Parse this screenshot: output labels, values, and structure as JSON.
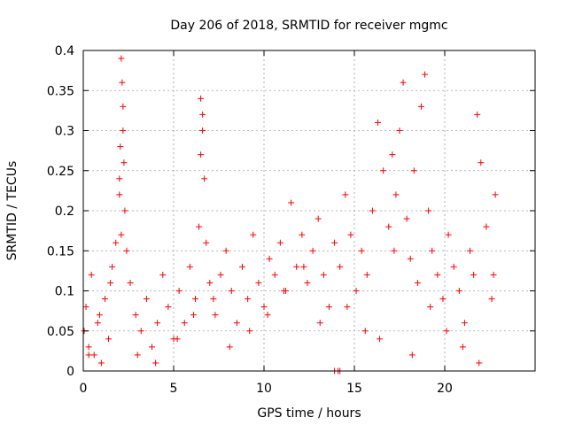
{
  "chart_data": {
    "type": "scatter",
    "title": "Day 206 of 2018, SRMTID for receiver mgmc",
    "xlabel": "GPS time / hours",
    "ylabel": "SRMTID / TECUs",
    "xlim": [
      0,
      25
    ],
    "ylim": [
      0,
      0.4
    ],
    "xticks": [
      "0",
      "5",
      "10",
      "15",
      "20"
    ],
    "yticks": [
      "0",
      "0.05",
      "0.1",
      "0.15",
      "0.2",
      "0.25",
      "0.3",
      "0.35",
      "0.4"
    ],
    "grid": true,
    "marker_color": "#ff0000",
    "series": [
      {
        "marker": "plus",
        "x": [
          0.05,
          0.15,
          0.3,
          0.45,
          0.6,
          0.8,
          1.0,
          1.2,
          1.4,
          1.6,
          1.8,
          2.0,
          2.05,
          2.1,
          2.15,
          2.2,
          2.25,
          2.3,
          2.4,
          2.6,
          2.9,
          3.2,
          3.5,
          3.8,
          4.1,
          4.4,
          4.7,
          5.0,
          5.3,
          5.6,
          5.9,
          6.2,
          6.4,
          6.5,
          6.6,
          6.7,
          6.8,
          7.0,
          7.3,
          7.6,
          7.9,
          8.2,
          8.5,
          8.8,
          9.1,
          9.4,
          9.7,
          10.0,
          10.3,
          10.6,
          10.9,
          11.2,
          11.5,
          11.8,
          12.1,
          12.4,
          12.7,
          13.0,
          13.3,
          13.6,
          13.9,
          14.2,
          14.5,
          14.8,
          15.1,
          15.4,
          15.7,
          16.0,
          16.3,
          16.6,
          16.9,
          17.1,
          17.3,
          17.5,
          17.7,
          17.9,
          18.1,
          18.3,
          18.5,
          18.7,
          18.9,
          19.1,
          19.3,
          19.6,
          19.9,
          20.2,
          20.5,
          20.8,
          21.1,
          21.4,
          21.6,
          21.8,
          22.0,
          22.3,
          22.6,
          22.8,
          0.3,
          0.9,
          1.5,
          2.1,
          3.0,
          4.0,
          5.2,
          6.1,
          7.2,
          8.1,
          9.2,
          10.2,
          11.1,
          12.2,
          13.1,
          14.6,
          15.6,
          16.4,
          17.2,
          18.2,
          19.2,
          20.1,
          21.0,
          21.9,
          22.7,
          2.0,
          2.2,
          6.5,
          6.6,
          13.9,
          14.1,
          14.2
        ],
        "y": [
          0.05,
          0.08,
          0.03,
          0.12,
          0.02,
          0.06,
          0.01,
          0.09,
          0.04,
          0.13,
          0.16,
          0.22,
          0.28,
          0.39,
          0.36,
          0.33,
          0.26,
          0.2,
          0.15,
          0.11,
          0.07,
          0.05,
          0.09,
          0.03,
          0.06,
          0.12,
          0.08,
          0.04,
          0.1,
          0.06,
          0.13,
          0.09,
          0.18,
          0.34,
          0.3,
          0.24,
          0.16,
          0.11,
          0.07,
          0.12,
          0.15,
          0.1,
          0.06,
          0.13,
          0.09,
          0.17,
          0.11,
          0.08,
          0.14,
          0.12,
          0.16,
          0.1,
          0.21,
          0.13,
          0.17,
          0.11,
          0.15,
          0.19,
          0.12,
          0.08,
          0.16,
          0.13,
          0.22,
          0.17,
          0.1,
          0.15,
          0.12,
          0.2,
          0.31,
          0.25,
          0.18,
          0.27,
          0.22,
          0.3,
          0.36,
          0.19,
          0.14,
          0.25,
          0.11,
          0.33,
          0.37,
          0.2,
          0.15,
          0.12,
          0.09,
          0.17,
          0.13,
          0.1,
          0.06,
          0.15,
          0.12,
          0.32,
          0.26,
          0.18,
          0.09,
          0.22,
          0.02,
          0.07,
          0.11,
          0.17,
          0.02,
          0.01,
          0.04,
          0.07,
          0.09,
          0.03,
          0.05,
          0.07,
          0.1,
          0.13,
          0.06,
          0.08,
          0.05,
          0.04,
          0.15,
          0.02,
          0.08,
          0.05,
          0.03,
          0.01,
          0.12,
          0.24,
          0.3,
          0.27,
          0.32,
          0.0,
          0.0,
          0.0
        ]
      }
    ]
  }
}
